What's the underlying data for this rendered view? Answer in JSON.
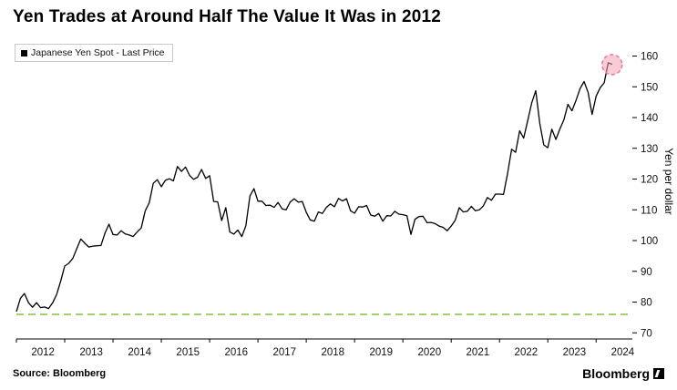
{
  "title": "Yen Trades at Around Half The Value It Was in 2012",
  "legend": {
    "label": "Japanese Yen Spot - Last Price"
  },
  "source": "Source: Bloomberg",
  "brand": "Bloomberg",
  "colors": {
    "line": "#000000",
    "baseline": "#7fc241",
    "highlight_fill": "#f2a0b4",
    "highlight_stroke": "#e87f97",
    "axis": "#000000",
    "tick_text": "#111111"
  },
  "chart_data": {
    "type": "line",
    "title": "Yen Trades at Around Half The Value It Was in 2012",
    "ylabel": "Yen per dollar",
    "ylim": [
      68,
      164
    ],
    "yticks": [
      70,
      80,
      90,
      100,
      110,
      120,
      130,
      140,
      150,
      160
    ],
    "x_tick_labels": [
      "2012",
      "2013",
      "2014",
      "2015",
      "2016",
      "2017",
      "2018",
      "2019",
      "2020",
      "2021",
      "2022",
      "2023",
      "2024"
    ],
    "x_domain": [
      2012.0,
      2024.75
    ],
    "x_start": 2012.0,
    "points_per_year": 12,
    "baseline_value": 76,
    "legend_position": "top-left",
    "grid": false,
    "series": [
      {
        "name": "Japanese Yen Spot - Last Price",
        "values": [
          76.9,
          81.2,
          82.8,
          79.8,
          78.3,
          79.8,
          78.2,
          78.4,
          77.9,
          79.8,
          82.5,
          86.8,
          91.7,
          92.6,
          94.2,
          97.4,
          100.5,
          99.1,
          97.9,
          98.2,
          98.3,
          98.4,
          102.4,
          105.3,
          102.0,
          101.8,
          103.2,
          102.2,
          101.8,
          101.3,
          102.8,
          104.1,
          109.7,
          112.3,
          118.6,
          119.8,
          117.5,
          119.6,
          120.1,
          119.4,
          124.1,
          122.5,
          123.9,
          121.2,
          119.9,
          120.6,
          123.1,
          120.2,
          121.1,
          112.7,
          112.6,
          106.5,
          110.7,
          102.8,
          102.1,
          103.4,
          101.3,
          104.8,
          114.5,
          116.9,
          112.8,
          112.8,
          111.4,
          111.5,
          110.8,
          112.4,
          110.3,
          110.0,
          112.5,
          113.6,
          112.5,
          112.7,
          109.2,
          106.7,
          106.3,
          109.3,
          108.8,
          110.8,
          111.9,
          111.0,
          113.7,
          112.9,
          113.6,
          109.7,
          108.9,
          111.0,
          110.9,
          111.4,
          108.3,
          107.9,
          108.8,
          106.3,
          108.1,
          108.0,
          109.5,
          108.6,
          108.4,
          108.1,
          102.0,
          106.9,
          107.8,
          107.9,
          105.8,
          105.9,
          105.5,
          104.7,
          104.3,
          103.2,
          104.7,
          106.6,
          110.7,
          109.3,
          109.5,
          111.1,
          109.7,
          110.0,
          111.3,
          114.0,
          113.1,
          115.1,
          115.1,
          115.0,
          121.7,
          129.7,
          128.7,
          135.7,
          133.3,
          138.9,
          144.7,
          148.7,
          138.1,
          131.1,
          130.2,
          136.2,
          132.9,
          136.3,
          139.3,
          144.3,
          142.2,
          145.5,
          149.4,
          151.7,
          148.2,
          141.0,
          146.9,
          149.7,
          151.3,
          157.8,
          157.3
        ]
      }
    ],
    "highlight": {
      "type": "circle",
      "x": 2024.33,
      "y": 157.2,
      "radius": 11
    }
  }
}
